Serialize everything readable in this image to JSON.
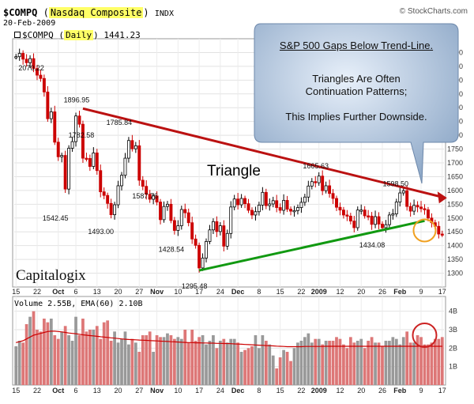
{
  "header": {
    "symbol": "$COMPQ",
    "name": "Nasdaq Composite",
    "exchange": "INDX",
    "date": "20-Feb-2009",
    "legend_symbol": "$COMPQ",
    "legend_period": "Daily",
    "legend_value": "1441.23",
    "source": "© StockCharts.com"
  },
  "callout": {
    "title": "S&P 500 Gaps Below Trend-Line.",
    "line1": "Triangles Are Often",
    "line2": "Continuation Patterns;",
    "line3": "This Implies Further Downside."
  },
  "logo": "Capitalogix",
  "colors": {
    "up": "#000000",
    "down": "#cc0000",
    "resistance": "#bb1111",
    "support": "#119911",
    "volume_up": "#999999",
    "volume_down": "#dd7777",
    "ema": "#cc0000"
  },
  "chart_data": [
    {
      "type": "candlestick",
      "series_name": "$COMPQ",
      "period": "Daily",
      "ylim": [
        1250,
        2150
      ],
      "y_ticks": [
        1300,
        1350,
        1400,
        1450,
        1500,
        1550,
        1600,
        1650,
        1700,
        1750,
        1800,
        1850,
        1900,
        1950,
        2000,
        2050,
        2100
      ],
      "x_ticks": [
        "15",
        "22",
        "Oct",
        "6",
        "13",
        "20",
        "27",
        "Nov",
        "10",
        "17",
        "24",
        "Dec",
        "8",
        "15",
        "22",
        "2009",
        "12",
        "20",
        "26",
        "Feb",
        "9",
        "17"
      ],
      "x_tick_bold": [
        "Oct",
        "Nov",
        "Dec",
        "2009",
        "Feb"
      ],
      "close": [
        2085,
        2097,
        2076,
        2063,
        2078,
        2042,
        2018,
        2006,
        1957,
        1860,
        1885,
        1775,
        1722,
        1727,
        1605,
        1753,
        1777,
        1870,
        1840,
        1717,
        1716,
        1687,
        1736,
        1672,
        1595,
        1582,
        1553,
        1512,
        1548,
        1617,
        1655,
        1717,
        1781,
        1751,
        1762,
        1637,
        1615,
        1586,
        1568,
        1580,
        1558,
        1494,
        1542,
        1550,
        1491,
        1455,
        1472,
        1531,
        1519,
        1483,
        1424,
        1401,
        1319,
        1355,
        1415,
        1457,
        1487,
        1451,
        1472,
        1398,
        1444,
        1540,
        1569,
        1548,
        1571,
        1552,
        1528,
        1511,
        1523,
        1547,
        1593,
        1545,
        1551,
        1563,
        1538,
        1528,
        1564,
        1532,
        1525,
        1527,
        1538,
        1557,
        1576,
        1616,
        1632,
        1628,
        1652,
        1599,
        1617,
        1589,
        1571,
        1539,
        1529,
        1511,
        1507,
        1489,
        1465,
        1529,
        1529,
        1508,
        1507,
        1477,
        1505,
        1478,
        1465,
        1476,
        1511,
        1515,
        1558,
        1591,
        1599,
        1542,
        1525,
        1546,
        1540,
        1534,
        1530,
        1500,
        1483,
        1470,
        1442,
        1441
      ],
      "annotations": [
        {
          "label": "2070.22",
          "index": 3
        },
        {
          "label": "1896.95",
          "index": 19
        },
        {
          "label": "1782.58",
          "index": 19
        },
        {
          "label": "1785.84",
          "index": 32
        },
        {
          "label": "1542.45",
          "index": 13
        },
        {
          "label": "1493.00",
          "index": 25
        },
        {
          "label": "1587.76",
          "index": 38
        },
        {
          "label": "1428.54",
          "index": 45
        },
        {
          "label": "1295.48",
          "index": 52
        },
        {
          "label": "1665.63",
          "index": 86
        },
        {
          "label": "1434.08",
          "index": 102
        },
        {
          "label": "1598.50",
          "index": 110
        }
      ],
      "pattern_label": "Triangle",
      "resistance_line": {
        "from": {
          "index": 19,
          "value": 1896.95
        },
        "to": {
          "index": 121,
          "value": 1576
        }
      },
      "support_line": {
        "from": {
          "index": 52,
          "value": 1310
        },
        "to": {
          "index": 116,
          "value": 1490
        }
      }
    },
    {
      "type": "bar",
      "series_name": "Volume",
      "legend": "Volume 2.55B, EMA(60) 2.10B",
      "ylim": [
        0,
        4.8
      ],
      "y_ticks": [
        "1B",
        "2B",
        "3B",
        "4B"
      ],
      "volume": [
        2.1,
        2.4,
        2.3,
        3.3,
        3.7,
        4.0,
        3.0,
        2.9,
        3.6,
        3.4,
        3.6,
        2.7,
        2.5,
        2.9,
        3.2,
        2.7,
        2.4,
        3.7,
        2.7,
        3.6,
        2.9,
        3.0,
        3.0,
        3.2,
        2.5,
        3.4,
        3.5,
        2.4,
        2.9,
        2.3,
        2.5,
        2.9,
        2.2,
        2.5,
        2.3,
        1.8,
        2.7,
        2.7,
        2.9,
        1.8,
        2.7,
        2.6,
        2.6,
        2.8,
        2.7,
        2.5,
        2.6,
        2.5,
        3.0,
        2.3,
        3.0,
        2.4,
        2.6,
        2.7,
        2.2,
        2.4,
        2.7,
        2.0,
        2.4,
        2.5,
        2.3,
        2.5,
        2.5,
        2.3,
        1.8,
        1.9,
        2.0,
        2.1,
        2.7,
        2.0,
        2.7,
        2.4,
        2.2,
        1.6,
        0.9,
        1.5,
        1.9,
        1.8,
        1.3,
        2.0,
        2.3,
        2.4,
        2.6,
        2.8,
        2.3,
        2.5,
        2.5,
        2.2,
        2.4,
        2.4,
        2.4,
        2.6,
        2.5,
        2.2,
        2.0,
        2.6,
        2.3,
        2.4,
        2.5,
        2.0,
        2.4,
        2.6,
        2.3,
        2.3,
        2.1,
        2.4,
        2.4,
        2.6,
        2.5,
        2.2,
        2.6,
        2.9,
        2.3,
        2.3,
        2.7,
        2.6,
        2.2,
        2.2,
        2.3,
        2.5,
        2.5,
        2.6
      ],
      "ema": [
        2.3,
        2.35,
        2.4,
        2.5,
        2.6,
        2.7,
        2.75,
        2.8,
        2.85,
        2.9,
        2.92,
        2.92,
        2.9,
        2.88,
        2.85,
        2.82,
        2.8,
        2.78,
        2.75,
        2.72,
        2.7,
        2.68,
        2.66,
        2.64,
        2.62,
        2.6,
        2.58,
        2.56,
        2.54,
        2.52,
        2.5,
        2.48,
        2.47,
        2.46,
        2.45,
        2.44,
        2.43,
        2.42,
        2.41,
        2.4,
        2.39,
        2.38,
        2.37,
        2.36,
        2.35,
        2.34,
        2.33,
        2.32,
        2.31,
        2.3,
        2.3,
        2.29,
        2.29,
        2.28,
        2.28,
        2.27,
        2.27,
        2.26,
        2.26,
        2.25,
        2.25,
        2.24,
        2.23,
        2.22,
        2.21,
        2.2,
        2.19,
        2.18,
        2.17,
        2.16,
        2.15,
        2.14,
        2.13,
        2.12,
        2.11,
        2.1,
        2.09,
        2.08,
        2.08,
        2.08,
        2.08,
        2.08,
        2.09,
        2.09,
        2.09,
        2.09,
        2.09,
        2.09,
        2.1,
        2.1,
        2.1,
        2.1,
        2.1,
        2.1,
        2.1,
        2.1,
        2.1,
        2.1,
        2.1,
        2.1,
        2.1,
        2.1,
        2.1,
        2.1,
        2.1,
        2.1,
        2.1,
        2.1,
        2.1,
        2.1,
        2.1,
        2.1,
        2.1,
        2.1,
        2.1,
        2.1,
        2.1,
        2.1,
        2.1,
        2.1,
        2.1,
        2.1
      ]
    }
  ]
}
